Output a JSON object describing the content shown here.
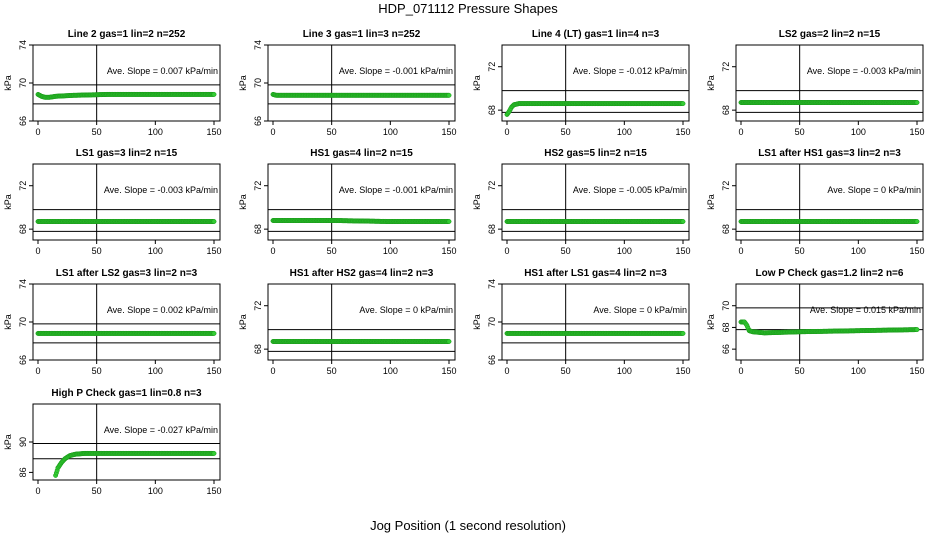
{
  "figure": {
    "title": "HDP_071112  Pressure Shapes",
    "xlabel": "Jog Position (1 second resolution)"
  },
  "colors": {
    "series": "#33cc33",
    "series_stroke": "#1a9a1a",
    "axis": "#000000"
  },
  "chart_data": [
    {
      "type": "scatter",
      "title": "Line 2 gas=1 lin=2 n=252",
      "ylabel": "kPa",
      "xlim": [
        0,
        150
      ],
      "ylim": [
        66,
        74
      ],
      "xticks": [
        0,
        50,
        100,
        150
      ],
      "yticks": [
        66,
        70,
        74
      ],
      "hlines": [
        67.8,
        69.8
      ],
      "vline": 50,
      "slope_text": "Ave. Slope =  0.007  kPa/min",
      "points": [
        [
          0,
          68.8
        ],
        [
          3,
          68.6
        ],
        [
          6,
          68.5
        ],
        [
          10,
          68.5
        ],
        [
          15,
          68.6
        ],
        [
          30,
          68.7
        ],
        [
          60,
          68.8
        ],
        [
          100,
          68.8
        ],
        [
          150,
          68.8
        ]
      ]
    },
    {
      "type": "scatter",
      "title": "Line 3 gas=1 lin=3 n=252",
      "ylabel": "kPa",
      "xlim": [
        0,
        150
      ],
      "ylim": [
        66,
        74
      ],
      "xticks": [
        0,
        50,
        100,
        150
      ],
      "yticks": [
        66,
        70,
        74
      ],
      "hlines": [
        67.8,
        69.8
      ],
      "vline": 50,
      "slope_text": "Ave. Slope =  -0.001  kPa/min",
      "points": [
        [
          0,
          68.8
        ],
        [
          3,
          68.7
        ],
        [
          10,
          68.7
        ],
        [
          50,
          68.7
        ],
        [
          100,
          68.7
        ],
        [
          150,
          68.7
        ]
      ]
    },
    {
      "type": "scatter",
      "title": "Line 4 (LT) gas=1 lin=4 n=3",
      "ylabel": "kPa",
      "xlim": [
        0,
        150
      ],
      "ylim": [
        67,
        74
      ],
      "xticks": [
        0,
        50,
        100,
        150
      ],
      "yticks": [
        68,
        72
      ],
      "hlines": [
        67.8,
        69.8
      ],
      "vline": 50,
      "slope_text": "Ave. Slope =  -0.012  kPa/min",
      "points": [
        [
          0,
          67.6
        ],
        [
          2,
          67.9
        ],
        [
          4,
          68.3
        ],
        [
          6,
          68.5
        ],
        [
          10,
          68.6
        ],
        [
          20,
          68.6
        ],
        [
          50,
          68.6
        ],
        [
          100,
          68.6
        ],
        [
          150,
          68.6
        ]
      ]
    },
    {
      "type": "scatter",
      "title": "LS2 gas=2 lin=2 n=15",
      "ylabel": "kPa",
      "xlim": [
        0,
        150
      ],
      "ylim": [
        67,
        74
      ],
      "xticks": [
        0,
        50,
        100,
        150
      ],
      "yticks": [
        68,
        72
      ],
      "hlines": [
        67.8,
        69.8
      ],
      "vline": 50,
      "slope_text": "Ave. Slope =  -0.003  kPa/min",
      "points": [
        [
          0,
          68.7
        ],
        [
          50,
          68.7
        ],
        [
          100,
          68.7
        ],
        [
          150,
          68.7
        ]
      ]
    },
    {
      "type": "scatter",
      "title": "LS1 gas=3 lin=2 n=15",
      "ylabel": "kPa",
      "xlim": [
        0,
        150
      ],
      "ylim": [
        67,
        74
      ],
      "xticks": [
        0,
        50,
        100,
        150
      ],
      "yticks": [
        68,
        72
      ],
      "hlines": [
        67.8,
        69.8
      ],
      "vline": 50,
      "slope_text": "Ave. Slope =  -0.003  kPa/min",
      "points": [
        [
          0,
          68.7
        ],
        [
          50,
          68.7
        ],
        [
          100,
          68.7
        ],
        [
          150,
          68.7
        ]
      ]
    },
    {
      "type": "scatter",
      "title": "HS1 gas=4 lin=2 n=15",
      "ylabel": "kPa",
      "xlim": [
        0,
        150
      ],
      "ylim": [
        67,
        74
      ],
      "xticks": [
        0,
        50,
        100,
        150
      ],
      "yticks": [
        68,
        72
      ],
      "hlines": [
        67.8,
        69.8
      ],
      "vline": 50,
      "slope_text": "Ave. Slope =  -0.001  kPa/min",
      "points": [
        [
          0,
          68.8
        ],
        [
          50,
          68.8
        ],
        [
          100,
          68.7
        ],
        [
          150,
          68.7
        ]
      ]
    },
    {
      "type": "scatter",
      "title": "HS2 gas=5 lin=2 n=15",
      "ylabel": "kPa",
      "xlim": [
        0,
        150
      ],
      "ylim": [
        67,
        74
      ],
      "xticks": [
        0,
        50,
        100,
        150
      ],
      "yticks": [
        68,
        72
      ],
      "hlines": [
        67.8,
        69.8
      ],
      "vline": 50,
      "slope_text": "Ave. Slope =  -0.005  kPa/min",
      "points": [
        [
          0,
          68.7
        ],
        [
          50,
          68.7
        ],
        [
          100,
          68.7
        ],
        [
          150,
          68.7
        ]
      ]
    },
    {
      "type": "scatter",
      "title": "LS1 after HS1 gas=3 lin=2 n=3",
      "ylabel": "kPa",
      "xlim": [
        0,
        150
      ],
      "ylim": [
        67,
        74
      ],
      "xticks": [
        0,
        50,
        100,
        150
      ],
      "yticks": [
        68,
        72
      ],
      "hlines": [
        67.8,
        69.8
      ],
      "vline": 50,
      "slope_text": "Ave. Slope =  0  kPa/min",
      "points": [
        [
          0,
          68.7
        ],
        [
          50,
          68.7
        ],
        [
          100,
          68.7
        ],
        [
          150,
          68.7
        ]
      ]
    },
    {
      "type": "scatter",
      "title": "LS1 after LS2 gas=3 lin=2 n=3",
      "ylabel": "kPa",
      "xlim": [
        0,
        150
      ],
      "ylim": [
        66,
        74
      ],
      "xticks": [
        0,
        50,
        100,
        150
      ],
      "yticks": [
        66,
        70,
        74
      ],
      "hlines": [
        67.8,
        69.8
      ],
      "vline": 50,
      "slope_text": "Ave. Slope =  0.002  kPa/min",
      "points": [
        [
          0,
          68.8
        ],
        [
          50,
          68.8
        ],
        [
          100,
          68.8
        ],
        [
          150,
          68.8
        ]
      ]
    },
    {
      "type": "scatter",
      "title": "HS1 after HS2 gas=4 lin=2 n=3",
      "ylabel": "kPa",
      "xlim": [
        0,
        150
      ],
      "ylim": [
        67,
        74
      ],
      "xticks": [
        0,
        50,
        100,
        150
      ],
      "yticks": [
        68,
        72
      ],
      "hlines": [
        67.8,
        69.8
      ],
      "vline": 50,
      "slope_text": "Ave. Slope =  0  kPa/min",
      "points": [
        [
          0,
          68.7
        ],
        [
          50,
          68.7
        ],
        [
          100,
          68.7
        ],
        [
          150,
          68.7
        ]
      ]
    },
    {
      "type": "scatter",
      "title": "HS1 after LS1 gas=4 lin=2 n=3",
      "ylabel": "kPa",
      "xlim": [
        0,
        150
      ],
      "ylim": [
        66,
        74
      ],
      "xticks": [
        0,
        50,
        100,
        150
      ],
      "yticks": [
        66,
        70,
        74
      ],
      "hlines": [
        67.8,
        69.8
      ],
      "vline": 50,
      "slope_text": "Ave. Slope =  0  kPa/min",
      "points": [
        [
          0,
          68.8
        ],
        [
          50,
          68.8
        ],
        [
          100,
          68.8
        ],
        [
          150,
          68.8
        ]
      ]
    },
    {
      "type": "scatter",
      "title": "Low P Check gas=1.2 lin=2 n=6",
      "ylabel": "kPa",
      "xlim": [
        0,
        150
      ],
      "ylim": [
        65,
        72
      ],
      "xticks": [
        0,
        50,
        100,
        150
      ],
      "yticks": [
        66,
        68,
        70
      ],
      "hlines": [
        67.8,
        69.8
      ],
      "vline": 50,
      "slope_text": "Ave. Slope =  0.015  kPa/min",
      "points": [
        [
          0,
          68.5
        ],
        [
          3,
          68.5
        ],
        [
          5,
          68.2
        ],
        [
          7,
          67.7
        ],
        [
          10,
          67.6
        ],
        [
          20,
          67.5
        ],
        [
          50,
          67.6
        ],
        [
          100,
          67.7
        ],
        [
          150,
          67.8
        ]
      ]
    },
    {
      "type": "scatter",
      "title": "High P Check gas=1 lin=0.8 n=3",
      "ylabel": "kPa",
      "xlim": [
        0,
        150
      ],
      "ylim": [
        85,
        95
      ],
      "xticks": [
        0,
        50,
        100,
        150
      ],
      "yticks": [
        86,
        90
      ],
      "hlines": [
        87.8,
        89.8
      ],
      "vline": 50,
      "slope_text": "Ave. Slope =  -0.027  kPa/min",
      "points": [
        [
          15,
          85.6
        ],
        [
          17,
          86.6
        ],
        [
          20,
          87.3
        ],
        [
          23,
          87.8
        ],
        [
          27,
          88.2
        ],
        [
          32,
          88.4
        ],
        [
          40,
          88.5
        ],
        [
          60,
          88.5
        ],
        [
          100,
          88.5
        ],
        [
          150,
          88.5
        ]
      ]
    }
  ]
}
